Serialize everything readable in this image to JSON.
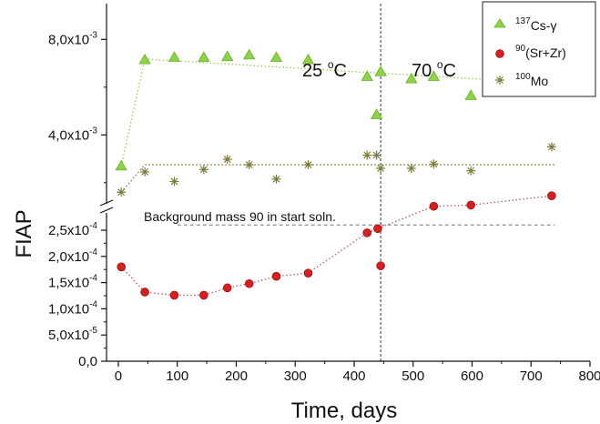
{
  "chart_data": {
    "type": "scatter",
    "title": "",
    "xlabel": "Time, days",
    "ylabel": "FIAP",
    "xlim": [
      -20,
      800
    ],
    "x_ticks": [
      "0",
      "100",
      "200",
      "300",
      "400",
      "500",
      "600",
      "700",
      "800"
    ],
    "y_axis_broken": true,
    "y_lower_range": [
      0,
      0.00029
    ],
    "y_lower_ticks": [
      {
        "value": 0,
        "label": "0,0"
      },
      {
        "value": 5e-05,
        "label": "5,0x10",
        "exp": "-5"
      },
      {
        "value": 0.0001,
        "label": "1,0x10",
        "exp": "-4"
      },
      {
        "value": 0.00015,
        "label": "1,5x10",
        "exp": "-4"
      },
      {
        "value": 0.0002,
        "label": "2,0x10",
        "exp": "-4"
      },
      {
        "value": 0.00025,
        "label": "2,5x10",
        "exp": "-4"
      }
    ],
    "y_upper_range": [
      0.0018,
      0.0095
    ],
    "y_upper_ticks": [
      {
        "value": 0.004,
        "label": "4,0x10",
        "exp": "-3"
      },
      {
        "value": 0.008,
        "label": "8,0x10",
        "exp": "-3"
      }
    ],
    "annotations": {
      "region_left": {
        "pre": "25 ",
        "deg": "o",
        "post": "C"
      },
      "region_right": {
        "pre": "70 ",
        "deg": "o",
        "post": "C"
      },
      "divider_x": 445,
      "background_label": "Background mass 90 in start soln.",
      "background_value": 0.00026
    },
    "legend": {
      "position": "top-right",
      "entries": [
        {
          "sup": "137",
          "text": "Cs-γ"
        },
        {
          "sup": "90",
          "text": "(Sr+Zr)"
        },
        {
          "sup": "100",
          "text": "Mo"
        }
      ]
    },
    "series": [
      {
        "marker": "triangle",
        "color": "#8fd24a",
        "stroke": "#6ab02c",
        "panel": "upper",
        "x": [
          5,
          45,
          95,
          145,
          185,
          222,
          268,
          322,
          422,
          438,
          445,
          497,
          535,
          598,
          735
        ],
        "y": [
          0.0027,
          0.00715,
          0.00725,
          0.00725,
          0.00728,
          0.00735,
          0.00725,
          0.00715,
          0.00645,
          0.00485,
          0.00665,
          0.00635,
          0.00645,
          0.00565,
          0.006
        ],
        "trend_x": [
          5,
          45,
          740
        ],
        "trend_y": [
          0.0027,
          0.00718,
          0.00615
        ]
      },
      {
        "marker": "circle",
        "color": "#d42020",
        "stroke": "#8a0a0a",
        "panel": "mixed",
        "x": [
          5,
          45,
          95,
          145,
          185,
          222,
          268,
          322,
          422,
          440,
          445,
          535,
          598,
          735
        ],
        "y": [
          0.00018,
          0.000132,
          0.000126,
          0.000126,
          0.00014,
          0.000148,
          0.000162,
          0.000168,
          0.000245,
          0.000253,
          0.000182,
          0.00101,
          0.00106,
          0.00145
        ],
        "trend_x": [
          5,
          45,
          95,
          145,
          185,
          222,
          268,
          322,
          422,
          440,
          535,
          598,
          735
        ],
        "trend_y": [
          0.00018,
          0.000132,
          0.000126,
          0.000126,
          0.00014,
          0.000148,
          0.000162,
          0.000168,
          0.000245,
          0.000253,
          0.00101,
          0.00106,
          0.00145
        ]
      },
      {
        "marker": "asterisk",
        "color": "#7b7b3a",
        "stroke": "#7b7b3a",
        "panel": "upper",
        "x": [
          5,
          45,
          95,
          145,
          185,
          222,
          268,
          322,
          422,
          438,
          445,
          497,
          535,
          598,
          735
        ],
        "y": [
          0.0016,
          0.00245,
          0.00205,
          0.00255,
          0.00298,
          0.00275,
          0.00215,
          0.00275,
          0.00315,
          0.00315,
          0.0026,
          0.0026,
          0.00278,
          0.0025,
          0.0035
        ],
        "trend_x": [
          5,
          45,
          740
        ],
        "trend_y": [
          0.0016,
          0.00275,
          0.00275
        ]
      }
    ]
  }
}
